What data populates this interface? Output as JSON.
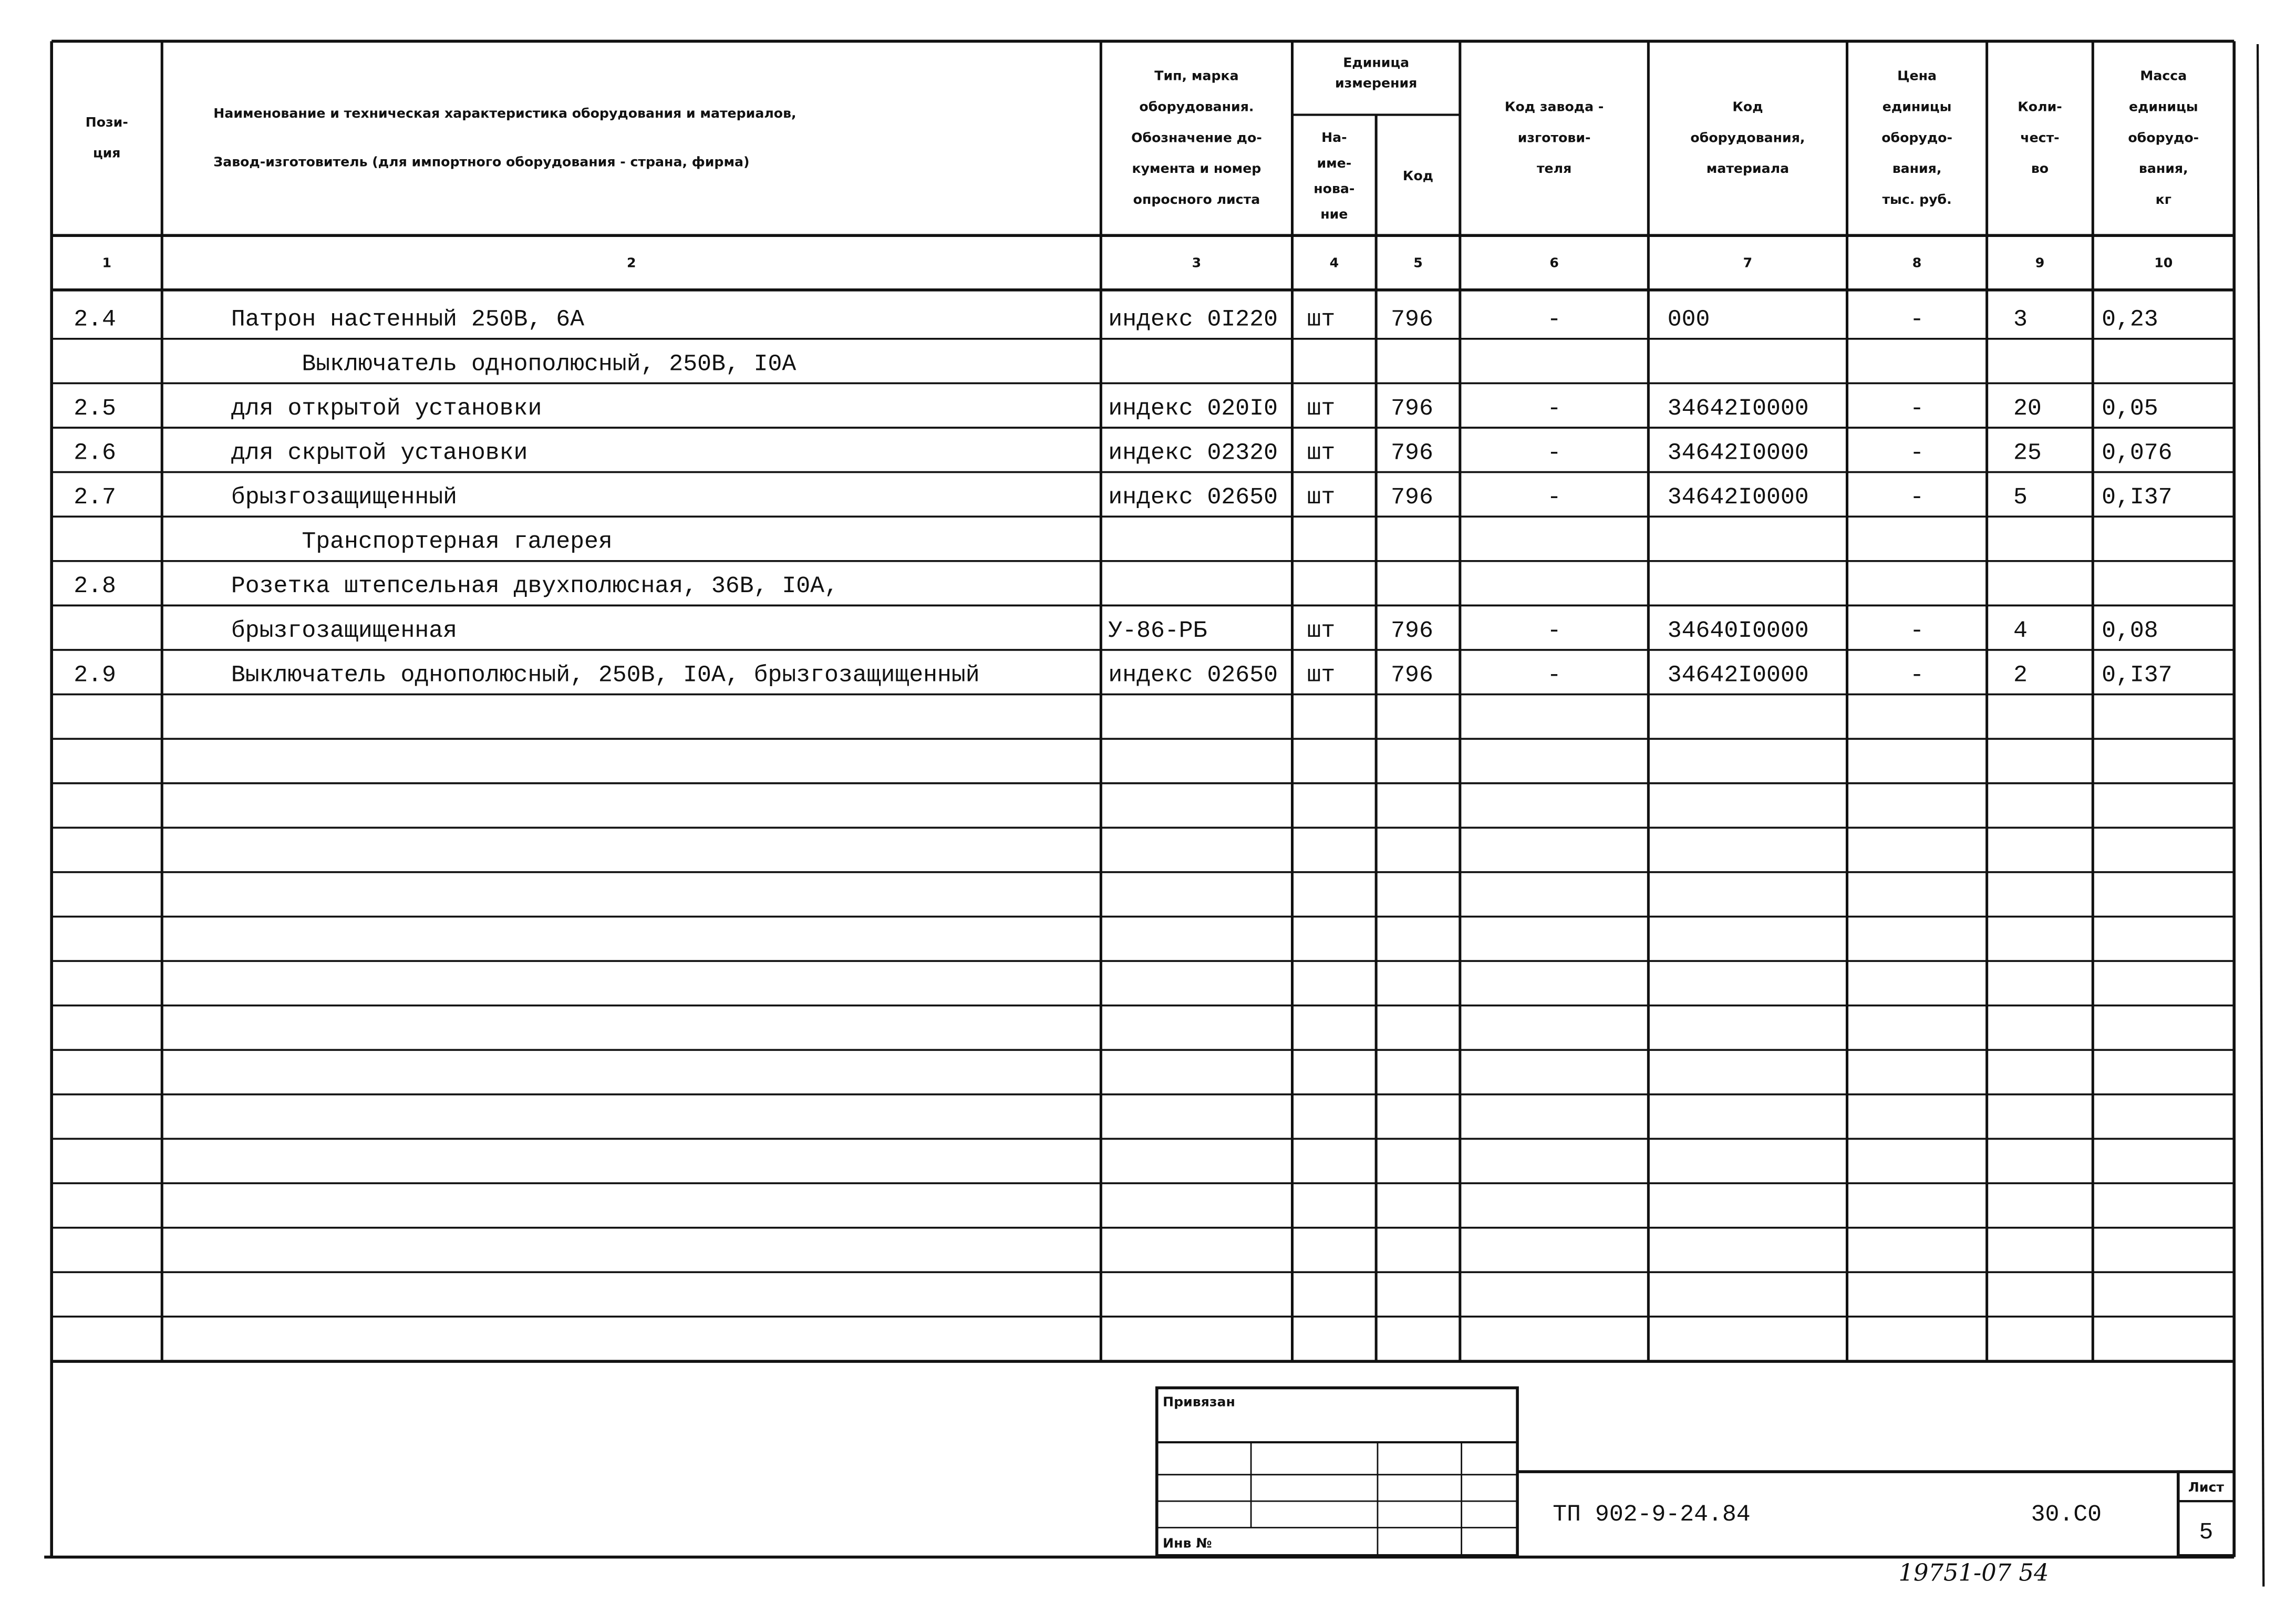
{
  "header": {
    "columns": [
      {
        "lines": [
          "Пози-",
          "ция"
        ]
      },
      {
        "lines": [
          "Наименование и техническая характеристика  оборудования и материалов,",
          "Завод-изготовитель  (для импортного оборудования -  страна, фирма)"
        ]
      },
      {
        "lines": [
          "Тип,      марка",
          "оборудования.",
          "Обозначение до-",
          "кумента и номер",
          "опросного листа"
        ]
      },
      {
        "lines": [
          "На-",
          "име-",
          "нова-",
          "ние"
        ]
      },
      {
        "lines": [
          "Код"
        ]
      },
      {
        "lines": [
          "Код  завода -",
          "изготови-",
          "теля"
        ]
      },
      {
        "lines": [
          "Код",
          "оборудования,",
          "материала"
        ]
      },
      {
        "lines": [
          "Цена",
          "единицы",
          "оборудо-",
          "вания,",
          "тыс. руб."
        ]
      },
      {
        "lines": [
          "Коли-",
          "чест-",
          "во"
        ]
      },
      {
        "lines": [
          "Масса",
          "единицы",
          "оборудо-",
          "вания,",
          "кг"
        ]
      }
    ],
    "unit_group": [
      "Единица",
      "измерения"
    ],
    "column_numbers": [
      1,
      2,
      3,
      4,
      5,
      6,
      7,
      8,
      9,
      10
    ]
  },
  "table": {
    "rows": [
      [
        "2.4",
        "Патрон настенный 250В, 6А",
        "индекс 0I220",
        "шт",
        "796",
        "-",
        "000",
        "-",
        "3",
        "0,23"
      ],
      [
        null,
        "Выключатель однополюсный, 250В, I0А",
        null,
        null,
        null,
        null,
        null,
        null,
        null,
        null
      ],
      [
        "2.5",
        "для открытой установки",
        "индекс 020I0",
        "шт",
        "796",
        "-",
        "34642I0000",
        "-",
        "20",
        "0,05"
      ],
      [
        "2.6",
        "для скрытой установки",
        "индекс 02320",
        "шт",
        "796",
        "-",
        "34642I0000",
        "-",
        "25",
        "0,076"
      ],
      [
        "2.7",
        "брызгозащищенный",
        "индекс 02650",
        "шт",
        "796",
        "-",
        "34642I0000",
        "-",
        "5",
        "0,I37"
      ],
      [
        null,
        "Транспортерная галерея",
        null,
        null,
        null,
        null,
        null,
        null,
        null,
        null
      ],
      [
        "2.8",
        "Розетка штепсельная двухполюсная, 36В, I0А,",
        null,
        null,
        null,
        null,
        null,
        null,
        null,
        null
      ],
      [
        null,
        "брызгозащищенная",
        "У-86-РБ",
        "шт",
        "796",
        "-",
        "34640I0000",
        "-",
        "4",
        "0,08"
      ],
      [
        "2.9",
        "Выключатель однополюсный, 250В, I0А, брызгозащищенный",
        "индекс 02650",
        "шт",
        "796",
        "-",
        "34642I0000",
        "-",
        "2",
        "0,I37"
      ]
    ]
  },
  "stamp": {
    "bound": "Привязан",
    "inventory": "Инв  №",
    "designation": "ТП 902-9-24.84",
    "code": "30.С0",
    "sheet_label": "Лист",
    "sheet": "5",
    "handwritten": "19751-07  54"
  }
}
